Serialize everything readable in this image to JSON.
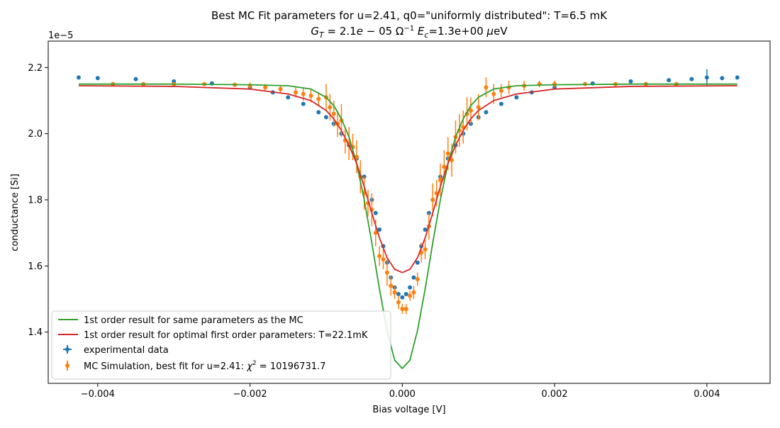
{
  "chart_data": {
    "type": "scatter",
    "title_line1": "Best MC Fit parameters for u=2.41, q0=\"uniformly distributed\":  T=6.5 mK",
    "title_line2": "G_T = 2.1e-05 Ω^-1 E_c=1.3e+00 μeV",
    "xlabel": "Bias voltage [V]",
    "ylabel": "conductance [Si]",
    "y_offset_text": "1e−5",
    "xlim": [
      -0.00465,
      0.00483
    ],
    "ylim": [
      1.245e-05,
      2.28e-05
    ],
    "x_ticks": [
      -0.004,
      -0.002,
      0.0,
      0.002,
      0.004
    ],
    "x_tick_labels": [
      "−0.004",
      "−0.002",
      "0.000",
      "0.002",
      "0.004"
    ],
    "y_ticks": [
      1.4e-05,
      1.6e-05,
      1.8e-05,
      2e-05,
      2.2e-05
    ],
    "y_tick_labels": [
      "1.4",
      "1.6",
      "1.8",
      "2.0",
      "2.2"
    ],
    "grid": false,
    "legend_position": "lower-left",
    "series": [
      {
        "name": "1st order result for same parameters as the MC",
        "kind": "line",
        "color": "#2ca02c",
        "x": [
          -0.00425,
          -0.003,
          -0.002,
          -0.0015,
          -0.0012,
          -0.001,
          -0.0009,
          -0.0008,
          -0.0007,
          -0.0006,
          -0.0005,
          -0.0004,
          -0.0003,
          -0.0002,
          -0.0001,
          0.0,
          0.0001,
          0.0002,
          0.0003,
          0.0004,
          0.0005,
          0.0006,
          0.0007,
          0.0008,
          0.0009,
          0.001,
          0.0012,
          0.0015,
          0.002,
          0.003,
          0.0044
        ],
        "y": [
          2.15e-05,
          2.15e-05,
          2.148e-05,
          2.145e-05,
          2.135e-05,
          2.11e-05,
          2.085e-05,
          2.045e-05,
          1.99e-05,
          1.91e-05,
          1.8e-05,
          1.67e-05,
          1.53e-05,
          1.405e-05,
          1.315e-05,
          1.29e-05,
          1.315e-05,
          1.405e-05,
          1.53e-05,
          1.67e-05,
          1.8e-05,
          1.91e-05,
          1.99e-05,
          2.045e-05,
          2.085e-05,
          2.11e-05,
          2.135e-05,
          2.145e-05,
          2.148e-05,
          2.15e-05,
          2.15e-05
        ]
      },
      {
        "name": "1st order result for optimal first order parameters: T=22.1mK",
        "kind": "line",
        "color": "#d62728",
        "x": [
          -0.00425,
          -0.003,
          -0.002,
          -0.0015,
          -0.0012,
          -0.001,
          -0.0009,
          -0.0008,
          -0.0007,
          -0.0006,
          -0.0005,
          -0.0004,
          -0.0003,
          -0.0002,
          -0.0001,
          0.0,
          0.0001,
          0.0002,
          0.0003,
          0.0004,
          0.0005,
          0.0006,
          0.0007,
          0.0008,
          0.0009,
          0.001,
          0.0012,
          0.0015,
          0.002,
          0.003,
          0.0044
        ],
        "y": [
          2.145e-05,
          2.143e-05,
          2.135e-05,
          2.12e-05,
          2.1e-05,
          2.07e-05,
          2.045e-05,
          2.01e-05,
          1.965e-05,
          1.91e-05,
          1.84e-05,
          1.76e-05,
          1.685e-05,
          1.625e-05,
          1.59e-05,
          1.58e-05,
          1.59e-05,
          1.625e-05,
          1.685e-05,
          1.76e-05,
          1.84e-05,
          1.91e-05,
          1.965e-05,
          2.01e-05,
          2.045e-05,
          2.07e-05,
          2.1e-05,
          2.12e-05,
          2.135e-05,
          2.143e-05,
          2.145e-05
        ]
      },
      {
        "name": "experimental data",
        "kind": "points",
        "color": "#1f77b4",
        "x": [
          -0.00425,
          -0.004,
          -0.0035,
          -0.003,
          -0.0025,
          -0.002,
          -0.0017,
          -0.0015,
          -0.0013,
          -0.0011,
          -0.001,
          -0.0009,
          -0.0008,
          -0.0007,
          -0.0006,
          -0.0005,
          -0.0004,
          -0.00035,
          -0.0003,
          -0.00025,
          -0.0002,
          -0.00015,
          -0.0001,
          -5e-05,
          0.0,
          5e-05,
          0.0001,
          0.00015,
          0.0002,
          0.00025,
          0.0003,
          0.00035,
          0.0004,
          0.0005,
          0.0006,
          0.0007,
          0.0008,
          0.0009,
          0.001,
          0.0011,
          0.0013,
          0.0015,
          0.0017,
          0.002,
          0.0025,
          0.003,
          0.0035,
          0.0038,
          0.004,
          0.0042,
          0.0044
        ],
        "y": [
          2.17e-05,
          2.168e-05,
          2.165e-05,
          2.158e-05,
          2.152e-05,
          2.14e-05,
          2.125e-05,
          2.11e-05,
          2.09e-05,
          2.065e-05,
          2.05e-05,
          2.03e-05,
          2e-05,
          1.965e-05,
          1.925e-05,
          1.87e-05,
          1.8e-05,
          1.76e-05,
          1.71e-05,
          1.66e-05,
          1.61e-05,
          1.565e-05,
          1.535e-05,
          1.515e-05,
          1.505e-05,
          1.515e-05,
          1.535e-05,
          1.565e-05,
          1.61e-05,
          1.66e-05,
          1.71e-05,
          1.76e-05,
          1.8e-05,
          1.87e-05,
          1.925e-05,
          1.965e-05,
          2e-05,
          2.03e-05,
          2.05e-05,
          2.065e-05,
          2.09e-05,
          2.11e-05,
          2.125e-05,
          2.14e-05,
          2.152e-05,
          2.158e-05,
          2.162e-05,
          2.165e-05,
          2.17e-05,
          2.168e-05,
          2.17e-05
        ],
        "yerr": [
          4e-08,
          4e-08,
          4e-08,
          4e-08,
          4e-08,
          4e-08,
          4e-08,
          4e-08,
          4e-08,
          4e-08,
          4e-08,
          4e-08,
          4e-08,
          4e-08,
          4e-08,
          4e-08,
          4e-08,
          4e-08,
          4e-08,
          4e-08,
          4e-08,
          4e-08,
          4e-08,
          4e-08,
          4e-08,
          4e-08,
          4e-08,
          4e-08,
          4e-08,
          4e-08,
          4e-08,
          4e-08,
          4e-08,
          4e-08,
          4e-08,
          4e-08,
          4e-08,
          4e-08,
          4e-08,
          4e-08,
          4e-08,
          4e-08,
          4e-08,
          4e-08,
          4e-08,
          4e-08,
          4e-08,
          4e-08,
          2.5e-07,
          4e-08,
          4e-08
        ]
      },
      {
        "name": "MC Simulation, best fit for u=2.41:  χ² = 10196731.7",
        "kind": "points",
        "color": "#ff7f0e",
        "x": [
          -0.0038,
          -0.0034,
          -0.003,
          -0.0026,
          -0.0022,
          -0.002,
          -0.0018,
          -0.0016,
          -0.0014,
          -0.0013,
          -0.0012,
          -0.0011,
          -0.001,
          -0.00095,
          -0.0009,
          -0.00085,
          -0.0008,
          -0.00075,
          -0.0007,
          -0.00065,
          -0.0006,
          -0.00055,
          -0.0005,
          -0.00045,
          -0.0004,
          -0.00035,
          -0.0003,
          -0.00025,
          -0.0002,
          -0.00015,
          -0.0001,
          -5e-05,
          0.0,
          5e-05,
          0.0001,
          0.00015,
          0.0002,
          0.00025,
          0.0003,
          0.00035,
          0.0004,
          0.00045,
          0.0005,
          0.00055,
          0.0006,
          0.00065,
          0.0007,
          0.00075,
          0.0008,
          0.00085,
          0.0009,
          0.001,
          0.0011,
          0.0012,
          0.0013,
          0.0014,
          0.0016,
          0.0018,
          0.002,
          0.0024,
          0.0028,
          0.0032,
          0.0036
        ],
        "y": [
          2.15e-05,
          2.15e-05,
          2.15e-05,
          2.15e-05,
          2.148e-05,
          2.145e-05,
          2.14e-05,
          2.135e-05,
          2.125e-05,
          2.12e-05,
          2.115e-05,
          2.105e-05,
          2.11e-05,
          2.08e-05,
          2.06e-05,
          2.03e-05,
          2.04e-05,
          1.98e-05,
          1.97e-05,
          1.96e-05,
          1.93e-05,
          1.87e-05,
          1.82e-05,
          1.79e-05,
          1.77e-05,
          1.7e-05,
          1.63e-05,
          1.62e-05,
          1.58e-05,
          1.54e-05,
          1.52e-05,
          1.49e-05,
          1.47e-05,
          1.47e-05,
          1.51e-05,
          1.52e-05,
          1.56e-05,
          1.64e-05,
          1.65e-05,
          1.72e-05,
          1.8e-05,
          1.82e-05,
          1.86e-05,
          1.9e-05,
          1.94e-05,
          1.92e-05,
          1.99e-05,
          2.01e-05,
          2.02e-05,
          2.06e-05,
          2.07e-05,
          2.08e-05,
          2.14e-05,
          2.12e-05,
          2.13e-05,
          2.14e-05,
          2.145e-05,
          2.15e-05,
          2.15e-05,
          2.15e-05,
          2.15e-05,
          2.15e-05,
          2.15e-05
        ],
        "yerr": [
          6e-08,
          6e-08,
          6e-08,
          6e-08,
          6e-08,
          1e-07,
          1e-07,
          1e-07,
          1.5e-07,
          2e-07,
          2e-07,
          2e-07,
          4e-07,
          4e-07,
          4e-07,
          4e-07,
          5e-07,
          4e-07,
          5e-07,
          4e-07,
          5e-07,
          5e-07,
          5e-07,
          4e-07,
          5e-07,
          4e-07,
          3e-07,
          3e-07,
          4e-07,
          3e-07,
          2e-07,
          2e-07,
          1.5e-07,
          1.5e-07,
          1.5e-07,
          2e-07,
          2e-07,
          3e-07,
          3e-07,
          4e-07,
          5e-07,
          4e-07,
          5e-07,
          5e-07,
          5e-07,
          5e-07,
          5e-07,
          5e-07,
          5e-07,
          5e-07,
          4e-07,
          4e-07,
          3e-07,
          3e-07,
          2e-07,
          2e-07,
          1.5e-07,
          1e-07,
          1e-07,
          6e-08,
          6e-08,
          6e-08,
          6e-08
        ]
      }
    ]
  }
}
